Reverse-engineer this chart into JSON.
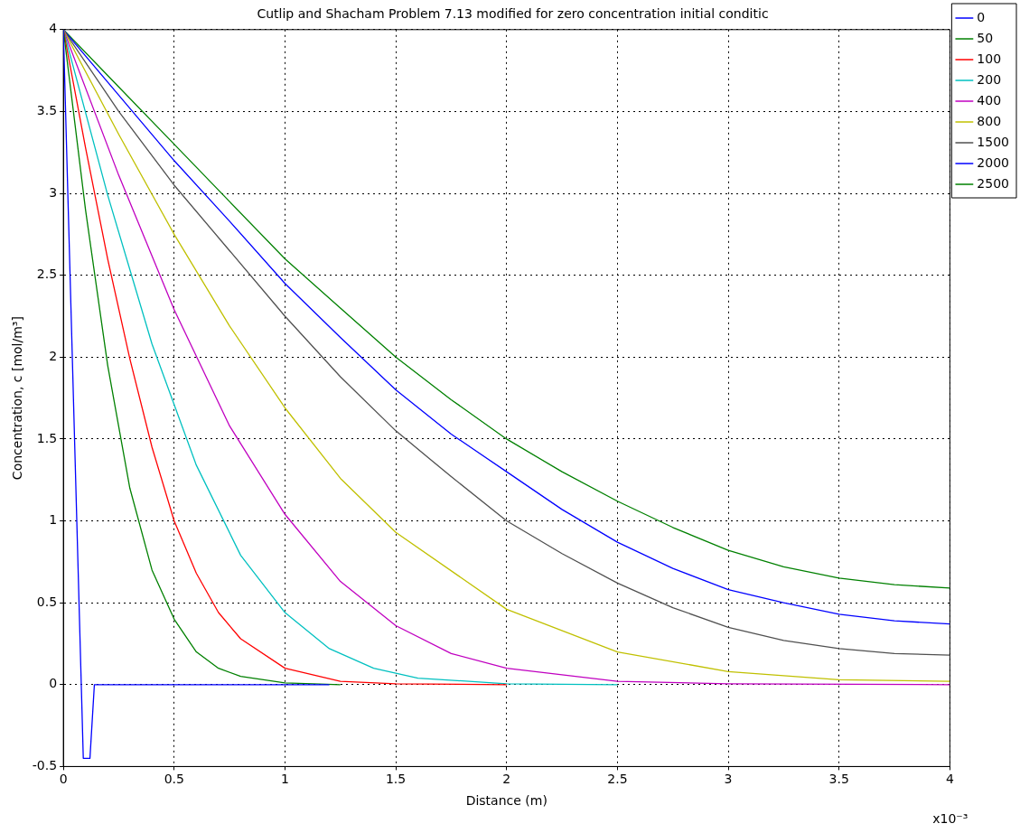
{
  "chart_data": {
    "type": "line",
    "title": "Cutlip and Shacham Problem 7.13 modified for zero concentration initial conditic",
    "xlabel": "Distance (m)",
    "ylabel": "Concentration, c [mol/m³]",
    "annotations": [
      "x10⁻³"
    ],
    "xlim": [
      0,
      4
    ],
    "xticks": [
      0,
      0.5,
      1,
      1.5,
      2,
      2.5,
      3,
      3.5,
      4
    ],
    "ylim": [
      -0.5,
      4
    ],
    "yticks": [
      -0.5,
      0,
      0.5,
      1,
      1.5,
      2,
      2.5,
      3,
      3.5,
      4
    ],
    "grid": true,
    "legend": "top right",
    "marker": "none",
    "series": [
      {
        "name": "0",
        "color": "#0000ff",
        "x": [
          0,
          0.09,
          0.12,
          0.14,
          1.2
        ],
        "values": [
          4,
          -0.45,
          -0.45,
          0,
          0
        ]
      },
      {
        "name": "50",
        "color": "#008000",
        "x": [
          0,
          0.1,
          0.2,
          0.3,
          0.4,
          0.5,
          0.6,
          0.7,
          0.8,
          1,
          1.25
        ],
        "values": [
          4,
          2.9,
          1.95,
          1.2,
          0.7,
          0.4,
          0.2,
          0.1,
          0.05,
          0.01,
          0
        ]
      },
      {
        "name": "100",
        "color": "#ff0000",
        "x": [
          0,
          0.1,
          0.2,
          0.3,
          0.4,
          0.5,
          0.6,
          0.7,
          0.8,
          1,
          1.25,
          1.5,
          2
        ],
        "values": [
          4,
          3.28,
          2.6,
          1.99,
          1.45,
          1,
          0.68,
          0.44,
          0.28,
          0.1,
          0.02,
          0.005,
          0
        ]
      },
      {
        "name": "200",
        "color": "#00c0c0",
        "x": [
          0,
          0.2,
          0.4,
          0.6,
          0.8,
          1,
          1.2,
          1.4,
          1.6,
          2,
          2.5
        ],
        "values": [
          4,
          2.99,
          2.08,
          1.34,
          0.79,
          0.44,
          0.22,
          0.1,
          0.04,
          0.005,
          0
        ]
      },
      {
        "name": "400",
        "color": "#c000c0",
        "x": [
          0,
          0.25,
          0.5,
          0.75,
          1,
          1.25,
          1.5,
          1.75,
          2,
          2.5,
          3,
          4
        ],
        "values": [
          4,
          3.11,
          2.29,
          1.58,
          1.04,
          0.63,
          0.36,
          0.19,
          0.1,
          0.02,
          0.005,
          0
        ]
      },
      {
        "name": "800",
        "color": "#c0c000",
        "x": [
          0,
          0.25,
          0.5,
          0.75,
          1,
          1.25,
          1.5,
          2,
          2.5,
          3,
          3.5,
          4
        ],
        "values": [
          4,
          3.36,
          2.75,
          2.19,
          1.69,
          1.26,
          0.93,
          0.46,
          0.2,
          0.08,
          0.03,
          0.02
        ]
      },
      {
        "name": "1500",
        "color": "#505050",
        "x": [
          0,
          0.25,
          0.5,
          0.75,
          1,
          1.25,
          1.5,
          1.75,
          2,
          2.25,
          2.5,
          2.75,
          3,
          3.25,
          3.5,
          3.75,
          4
        ],
        "values": [
          4,
          3.5,
          3.05,
          2.65,
          2.25,
          1.88,
          1.55,
          1.27,
          1,
          0.8,
          0.62,
          0.47,
          0.35,
          0.27,
          0.22,
          0.19,
          0.18
        ]
      },
      {
        "name": "2000",
        "color": "#0000ff",
        "x": [
          0,
          0.25,
          0.5,
          0.75,
          1,
          1.25,
          1.5,
          1.75,
          2,
          2.25,
          2.5,
          2.75,
          3,
          3.25,
          3.5,
          3.75,
          4
        ],
        "values": [
          4,
          3.6,
          3.2,
          2.83,
          2.45,
          2.12,
          1.8,
          1.53,
          1.3,
          1.07,
          0.87,
          0.71,
          0.58,
          0.5,
          0.43,
          0.39,
          0.37
        ]
      },
      {
        "name": "2500",
        "color": "#008000",
        "x": [
          0,
          0.25,
          0.5,
          0.75,
          1,
          1.25,
          1.5,
          1.75,
          2,
          2.25,
          2.5,
          2.75,
          3,
          3.25,
          3.5,
          3.75,
          4
        ],
        "values": [
          4,
          3.65,
          3.3,
          2.95,
          2.6,
          2.3,
          2,
          1.74,
          1.5,
          1.3,
          1.12,
          0.96,
          0.82,
          0.72,
          0.65,
          0.61,
          0.59
        ]
      }
    ]
  }
}
